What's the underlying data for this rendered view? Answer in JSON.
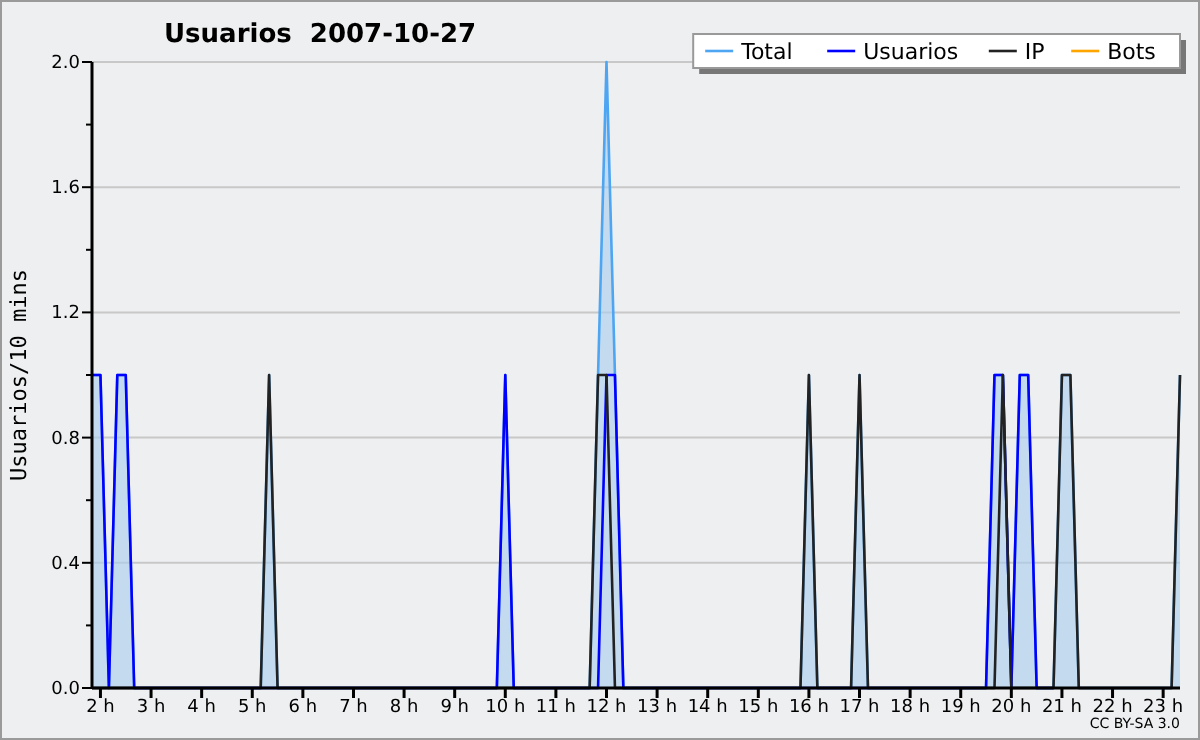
{
  "chart_data": {
    "type": "area",
    "title": "Usuarios  2007-10-27",
    "ylabel": "Usuarios/10 mins",
    "x": [
      1.833,
      2.0,
      2.167,
      2.333,
      2.5,
      2.667,
      5.167,
      5.333,
      5.5,
      9.833,
      10.0,
      10.167,
      11.667,
      11.833,
      12.0,
      12.167,
      12.333,
      15.833,
      16.0,
      16.167,
      16.833,
      17.0,
      17.167,
      19.5,
      19.667,
      19.833,
      20.0,
      20.167,
      20.333,
      20.5,
      20.833,
      21.0,
      21.167,
      21.333,
      23.167,
      23.333
    ],
    "series": [
      {
        "name": "Total",
        "color": "#4ea5f2",
        "values": [
          1,
          1,
          0,
          1,
          1,
          0,
          0,
          1,
          0,
          0,
          1,
          0,
          0,
          1,
          2,
          1,
          0,
          0,
          1,
          0,
          0,
          1,
          0,
          0,
          1,
          1,
          0,
          1,
          1,
          0,
          0,
          1,
          1,
          0,
          0,
          1
        ]
      },
      {
        "name": "Usuarios",
        "type": "line",
        "color": "#0000ff",
        "values": [
          1,
          1,
          0,
          1,
          1,
          0,
          0,
          0,
          0,
          0,
          1,
          0,
          0,
          0,
          1,
          1,
          0,
          0,
          0,
          0,
          0,
          0,
          0,
          0,
          1,
          1,
          0,
          1,
          1,
          0,
          0,
          null,
          null,
          null,
          null,
          null
        ]
      },
      {
        "name": "IP",
        "type": "line",
        "color": "#222222",
        "values": [
          0,
          0,
          0,
          0,
          0,
          0,
          0,
          1,
          0,
          0,
          0,
          0,
          0,
          1,
          1,
          0,
          0,
          0,
          1,
          0,
          0,
          1,
          0,
          0,
          0,
          1,
          0,
          0,
          0,
          0,
          0,
          1,
          1,
          0,
          0,
          1
        ]
      },
      {
        "name": "Bots",
        "type": "line",
        "color": "#ffa500",
        "values": [
          null,
          null,
          null,
          null,
          null,
          null,
          null,
          null,
          null,
          null,
          null,
          null,
          null,
          null,
          null,
          null,
          null,
          null,
          null,
          null,
          null,
          null,
          null,
          null,
          null,
          null,
          null,
          null,
          null,
          null,
          null,
          null,
          null,
          null,
          null,
          null
        ]
      }
    ],
    "xlim": [
      1.833,
      23.333
    ],
    "xticks": [
      {
        "value": 2,
        "label": "2 h"
      },
      {
        "value": 3,
        "label": "3 h"
      },
      {
        "value": 4,
        "label": "4 h"
      },
      {
        "value": 5,
        "label": "5 h"
      },
      {
        "value": 6,
        "label": "6 h"
      },
      {
        "value": 7,
        "label": "7 h"
      },
      {
        "value": 8,
        "label": "8 h"
      },
      {
        "value": 9,
        "label": "9 h"
      },
      {
        "value": 10,
        "label": "10 h"
      },
      {
        "value": 11,
        "label": "11 h"
      },
      {
        "value": 12,
        "label": "12 h"
      },
      {
        "value": 13,
        "label": "13 h"
      },
      {
        "value": 14,
        "label": "14 h"
      },
      {
        "value": 15,
        "label": "15 h"
      },
      {
        "value": 16,
        "label": "16 h"
      },
      {
        "value": 17,
        "label": "17 h"
      },
      {
        "value": 18,
        "label": "18 h"
      },
      {
        "value": 19,
        "label": "19 h"
      },
      {
        "value": 20,
        "label": "20 h"
      },
      {
        "value": 21,
        "label": "21 h"
      },
      {
        "value": 22,
        "label": "22 h"
      },
      {
        "value": 23,
        "label": "23 h"
      }
    ],
    "ylim": [
      0,
      2
    ],
    "yticks": [
      {
        "value": 0,
        "label": "0.0"
      },
      {
        "value": 0.2,
        "label": null
      },
      {
        "value": 0.4,
        "label": "0.4"
      },
      {
        "value": 0.6,
        "label": null
      },
      {
        "value": 0.8,
        "label": "0.8"
      },
      {
        "value": 1.0,
        "label": null
      },
      {
        "value": 1.2,
        "label": "1.2"
      },
      {
        "value": 1.4,
        "label": null
      },
      {
        "value": 1.6,
        "label": "1.6"
      },
      {
        "value": 1.8,
        "label": null
      },
      {
        "value": 2.0,
        "label": "2.0"
      }
    ],
    "grid": "y",
    "legend": "top right",
    "marker": "none",
    "line_style": "solid",
    "annotations": [
      "CC BY-SA 3.0"
    ]
  }
}
